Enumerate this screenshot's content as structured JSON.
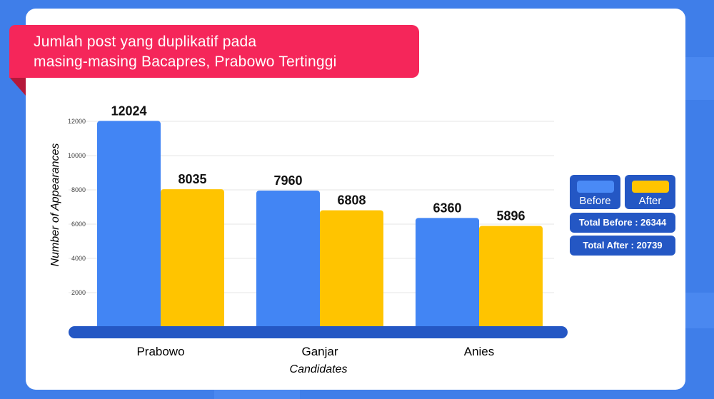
{
  "title_lines": [
    "Jumlah post yang duplikatif pada",
    "masing-masing Bacapres, Prabowo Tertinggi"
  ],
  "legend": {
    "before": "Before",
    "after": "After",
    "total_before": "Total Before : 26344",
    "total_after": "Total After : 20739"
  },
  "colors": {
    "background": "#3f7ee9",
    "before": "#4285f4",
    "after": "#ffc400",
    "axis_bar": "#2457c4",
    "banner": "#f5265a"
  },
  "chart_data": {
    "type": "bar",
    "categories": [
      "Prabowo",
      "Ganjar",
      "Anies"
    ],
    "series": [
      {
        "name": "Before",
        "values": [
          12024,
          7960,
          6360
        ]
      },
      {
        "name": "After",
        "values": [
          8035,
          6808,
          5896
        ]
      }
    ],
    "ylabel": "Number of Appearances",
    "xlabel": "Candidates",
    "yticks": [
      2000,
      4000,
      6000,
      8000,
      10000,
      12000
    ],
    "ylim": [
      0,
      12000
    ],
    "grid": true,
    "legend_position": "right",
    "data_labels": true
  }
}
